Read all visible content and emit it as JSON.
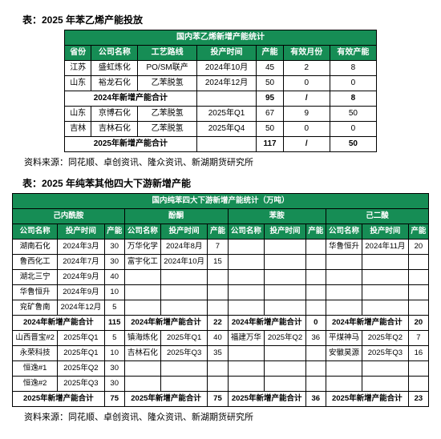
{
  "table1": {
    "caption": "表：2025 年苯乙烯产能投放",
    "title": "国内苯乙烯新增产能统计",
    "headers": [
      "省份",
      "公司名称",
      "工艺路线",
      "投产时间",
      "产能",
      "有效月份",
      "有效产能"
    ],
    "rows": [
      [
        "江苏",
        "盛虹炼化",
        "PO/SM联产",
        "2024年10月",
        "45",
        "2",
        "8"
      ],
      [
        "山东",
        "裕龙石化",
        "乙苯脱氢",
        "2024年12月",
        "50",
        "0",
        "0"
      ]
    ],
    "subtotal1": [
      "2024年新增产能合计",
      "",
      "95",
      "/",
      "8"
    ],
    "rows2": [
      [
        "山东",
        "京博石化",
        "乙苯脱氢",
        "2025年Q1",
        "67",
        "9",
        "50"
      ],
      [
        "吉林",
        "吉林石化",
        "乙苯脱氢",
        "2025年Q4",
        "50",
        "0",
        "0"
      ]
    ],
    "subtotal2": [
      "2025年新增产能合计",
      "",
      "117",
      "/",
      "50"
    ],
    "source": "资料来源：同花顺、卓创资讯、隆众资讯、新湖期货研究所"
  },
  "table2": {
    "caption": "表：2025 年纯苯其他四大下游新增产能",
    "title": "国内纯苯四大下游新增产能统计（万吨）",
    "group_headers": [
      "己内酰胺",
      "酚酮",
      "苯胺",
      "己二酸"
    ],
    "sub_headers": [
      "公司名称",
      "投产时间",
      "产能",
      "公司名称",
      "投产时间",
      "产能",
      "公司名称",
      "投产时间",
      "产能",
      "公司名称",
      "投产时间",
      "产能"
    ],
    "rowsA": [
      [
        "湖南石化",
        "2024年3月",
        "30",
        "万华化学",
        "2024年8月",
        "7",
        "",
        "",
        "",
        "华鲁恒升",
        "2024年11月",
        "20"
      ],
      [
        "鲁西化工",
        "2024年7月",
        "30",
        "富宇化工",
        "2024年10月",
        "15",
        "",
        "",
        "",
        "",
        "",
        ""
      ],
      [
        "湖北三宁",
        "2024年9月",
        "40",
        "",
        "",
        "",
        "",
        "",
        "",
        "",
        "",
        ""
      ],
      [
        "华鲁恒升",
        "2024年9月",
        "10",
        "",
        "",
        "",
        "",
        "",
        "",
        "",
        "",
        ""
      ],
      [
        "兖矿鲁南",
        "2024年12月",
        "5",
        "",
        "",
        "",
        "",
        "",
        "",
        "",
        "",
        ""
      ]
    ],
    "subtotalA": [
      "2024年新增产能合计",
      "",
      "115",
      "2024年新增产能合计",
      "",
      "22",
      "2024年新增产能合计",
      "",
      "0",
      "2024年新增产能合计",
      "",
      "20"
    ],
    "rowsB": [
      [
        "山西晋宝#2",
        "2025年Q1",
        "5",
        "镇海炼化",
        "2025年Q1",
        "40",
        "福建万华",
        "2025年Q2",
        "36",
        "平煤神马",
        "2025年Q2",
        "7"
      ],
      [
        "永荣科技",
        "2025年Q1",
        "10",
        "吉林石化",
        "2025年Q3",
        "35",
        "",
        "",
        "",
        "安徽昊源",
        "2025年Q3",
        "16"
      ],
      [
        "恒逸#1",
        "2025年Q2",
        "30",
        "",
        "",
        "",
        "",
        "",
        "",
        "",
        "",
        ""
      ],
      [
        "恒逸#2",
        "2025年Q3",
        "30",
        "",
        "",
        "",
        "",
        "",
        "",
        "",
        "",
        ""
      ]
    ],
    "subtotalB": [
      "2025年新增产能合计",
      "",
      "75",
      "2025年新增产能合计",
      "",
      "75",
      "2025年新增产能合计",
      "",
      "36",
      "2025年新增产能合计",
      "",
      "23"
    ],
    "source": "资料来源：同花顺、卓创资讯、隆众资讯、新湖期货研究所"
  },
  "colors": {
    "header_bg": "#168d55",
    "header_text": "#ffffff",
    "border": "#000000"
  }
}
